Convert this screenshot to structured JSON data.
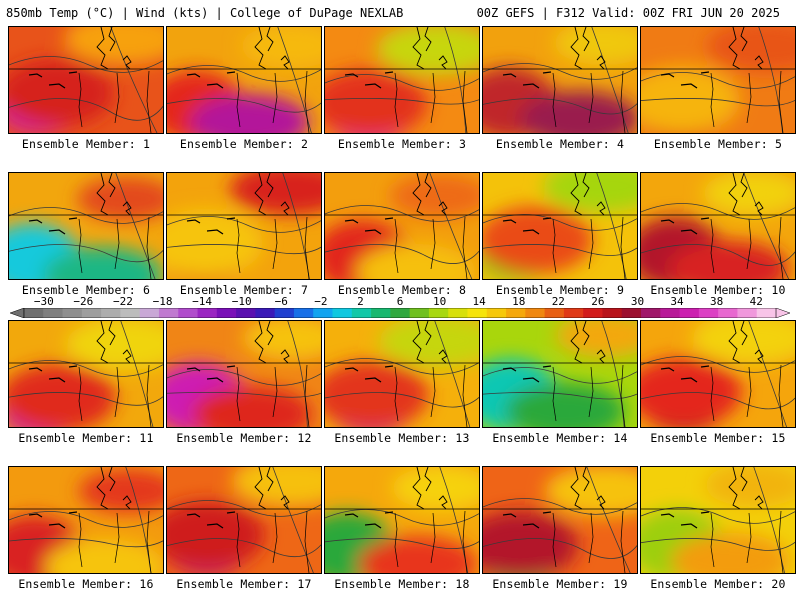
{
  "header": {
    "left_title": "850mb Temp (°C) | Wind (kts) | College of DuPage NEXLAB",
    "right_title": "00Z GEFS | F312 Valid: 00Z FRI JUN 20 2025"
  },
  "label_prefix": "Ensemble Member: ",
  "members": [
    {
      "number": "1",
      "label": "Ensemble Member: 1",
      "base": "#e8531a",
      "blobs": [
        {
          "color": "#cc1fb5",
          "note": "hot-core"
        },
        {
          "color": "#d6221e"
        },
        {
          "color": "#f7a10d"
        }
      ]
    },
    {
      "number": "2",
      "label": "Ensemble Member: 2",
      "base": "#f2a30d",
      "blobs": [
        {
          "color": "#e4251c"
        },
        {
          "color": "#b3139a"
        },
        {
          "color": "#f6b90a"
        }
      ]
    },
    {
      "number": "3",
      "label": "Ensemble Member: 3",
      "base": "#f48a12",
      "blobs": [
        {
          "color": "#d91fb4"
        },
        {
          "color": "#e3311a"
        },
        {
          "color": "#c7d60c"
        }
      ]
    },
    {
      "number": "4",
      "label": "Ensemble Member: 4",
      "base": "#f2a10d",
      "blobs": [
        {
          "color": "#c0262a"
        },
        {
          "color": "#9a1d4d"
        },
        {
          "color": "#f0c80a"
        }
      ]
    },
    {
      "number": "5",
      "label": "Ensemble Member: 5",
      "base": "#f07b14",
      "blobs": [
        {
          "color": "#e3281b"
        },
        {
          "color": "#f6b40b"
        },
        {
          "color": "#e85418"
        }
      ]
    },
    {
      "number": "6",
      "label": "Ensemble Member: 6",
      "base": "#f2a60d",
      "blobs": [
        {
          "color": "#12c9dc"
        },
        {
          "color": "#1cb784"
        },
        {
          "color": "#e34a1a"
        }
      ]
    },
    {
      "number": "7",
      "label": "Ensemble Member: 7",
      "base": "#f3a30c",
      "blobs": [
        {
          "color": "#e8401a"
        },
        {
          "color": "#f6c40a"
        },
        {
          "color": "#d8231d"
        }
      ]
    },
    {
      "number": "8",
      "label": "Ensemble Member: 8",
      "base": "#f39e0d",
      "blobs": [
        {
          "color": "#e2271c"
        },
        {
          "color": "#f6c00a"
        },
        {
          "color": "#ee6a16"
        }
      ]
    },
    {
      "number": "9",
      "label": "Ensemble Member: 9",
      "base": "#f4c20a",
      "blobs": [
        {
          "color": "#6fc51c"
        },
        {
          "color": "#ea4c19"
        },
        {
          "color": "#a6d60c"
        }
      ]
    },
    {
      "number": "10",
      "label": "Ensemble Member: 10",
      "base": "#f3a60c",
      "blobs": [
        {
          "color": "#b2152a"
        },
        {
          "color": "#d82420"
        },
        {
          "color": "#f2d10a"
        }
      ]
    },
    {
      "number": "11",
      "label": "Ensemble Member: 11",
      "base": "#f2a80c",
      "blobs": [
        {
          "color": "#c921b0"
        },
        {
          "color": "#e02a1c"
        },
        {
          "color": "#f0d40a"
        }
      ]
    },
    {
      "number": "12",
      "label": "Ensemble Member: 12",
      "base": "#f08516",
      "blobs": [
        {
          "color": "#cd1fb2"
        },
        {
          "color": "#de261c"
        },
        {
          "color": "#f6c20a"
        }
      ]
    },
    {
      "number": "13",
      "label": "Ensemble Member: 13",
      "base": "#f5b00b",
      "blobs": [
        {
          "color": "#c51c8f"
        },
        {
          "color": "#e3351a"
        },
        {
          "color": "#c6d60c"
        }
      ]
    },
    {
      "number": "14",
      "label": "Ensemble Member: 14",
      "base": "#a9d60c",
      "blobs": [
        {
          "color": "#10c7b4"
        },
        {
          "color": "#2aa83a"
        },
        {
          "color": "#f3a80c"
        }
      ]
    },
    {
      "number": "15",
      "label": "Ensemble Member: 15",
      "base": "#f5a50c",
      "blobs": [
        {
          "color": "#9f1430"
        },
        {
          "color": "#e4281c"
        },
        {
          "color": "#f3d20a"
        }
      ]
    },
    {
      "number": "16",
      "label": "Ensemble Member: 16",
      "base": "#f39a0e",
      "blobs": [
        {
          "color": "#d92022"
        },
        {
          "color": "#f6c40a"
        },
        {
          "color": "#e4381b"
        }
      ]
    },
    {
      "number": "17",
      "label": "Ensemble Member: 17",
      "base": "#ee6716",
      "blobs": [
        {
          "color": "#b0177f"
        },
        {
          "color": "#cf1f1f"
        },
        {
          "color": "#f6c00a"
        }
      ]
    },
    {
      "number": "18",
      "label": "Ensemble Member: 18",
      "base": "#f5a80c",
      "blobs": [
        {
          "color": "#2aa83a"
        },
        {
          "color": "#e8361a"
        },
        {
          "color": "#f6d20a"
        }
      ]
    },
    {
      "number": "19",
      "label": "Ensemble Member: 19",
      "base": "#ef6417",
      "blobs": [
        {
          "color": "#2aa83a"
        },
        {
          "color": "#b3172c"
        },
        {
          "color": "#f6c20a"
        }
      ]
    },
    {
      "number": "20",
      "label": "Ensemble Member: 20",
      "base": "#f3d00a",
      "blobs": [
        {
          "color": "#9dcf10"
        },
        {
          "color": "#f39c0d"
        },
        {
          "color": "#f2b40b"
        }
      ]
    }
  ],
  "colorbar": {
    "tick_labels": [
      "−30",
      "−26",
      "−22",
      "−18",
      "−14",
      "−10",
      "−6",
      "−2",
      "2",
      "6",
      "10",
      "14",
      "18",
      "22",
      "26",
      "30",
      "34",
      "38",
      "42"
    ],
    "tick_values": [
      -30,
      -26,
      -22,
      -18,
      -14,
      -10,
      -6,
      -2,
      2,
      6,
      10,
      14,
      18,
      22,
      26,
      30,
      34,
      38,
      42
    ],
    "min": -32,
    "max": 44,
    "colors": [
      "#707070",
      "#808080",
      "#8f8f8f",
      "#9e9e9e",
      "#adadad",
      "#bcbcbc",
      "#c9a8d6",
      "#c07ad0",
      "#b04ccc",
      "#9a25c2",
      "#7a10b8",
      "#5a10b0",
      "#3a1ab8",
      "#2040d0",
      "#1870e8",
      "#12a4f0",
      "#10c8e0",
      "#12c8a8",
      "#18b870",
      "#30a840",
      "#70c020",
      "#a8d810",
      "#d8e00a",
      "#f6e40a",
      "#f6c80a",
      "#f5a80c",
      "#f08810",
      "#e86014",
      "#e03a18",
      "#d21c1c",
      "#b8141c",
      "#9c1030",
      "#a0186a",
      "#b81a98",
      "#cc20b0",
      "#dc40c4",
      "#e868d0",
      "#f098dc",
      "#f8c4e8"
    ]
  }
}
